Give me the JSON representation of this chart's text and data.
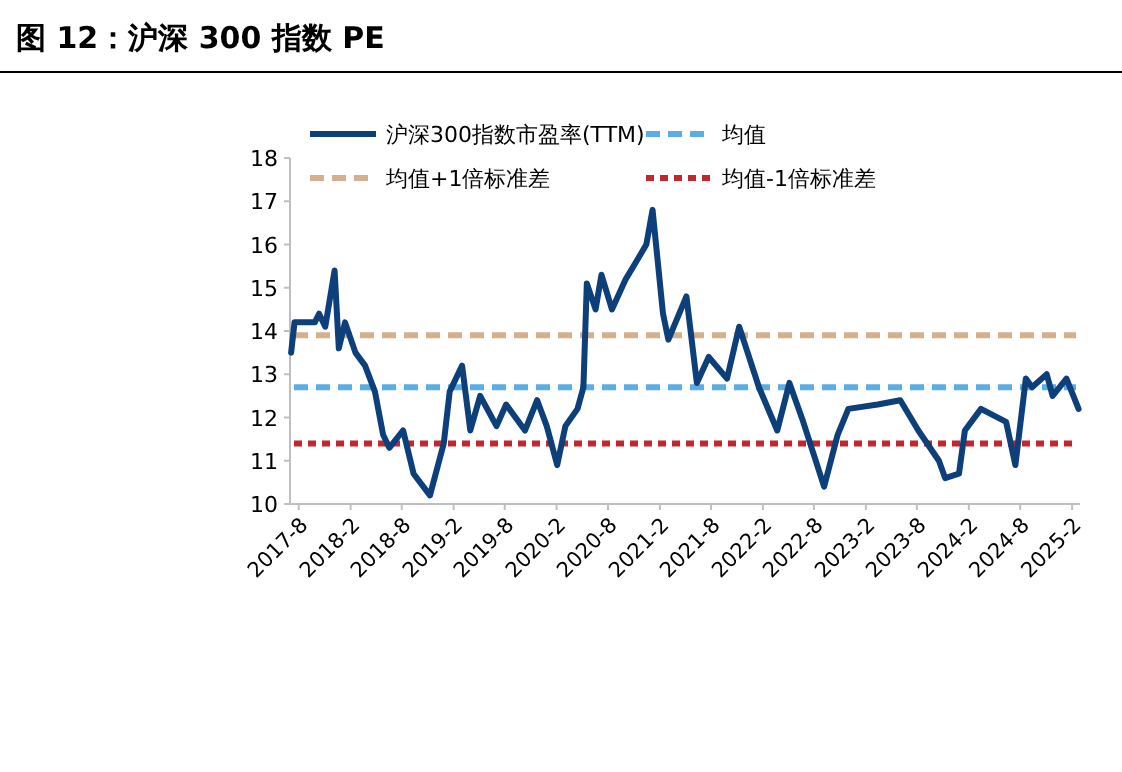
{
  "chart_data": {
    "type": "line",
    "title": "图 12：沪深 300 指数 PE",
    "xlim": [
      "2017-07",
      "2025-03"
    ],
    "ylim": [
      10,
      18
    ],
    "yticks": [
      10,
      11,
      12,
      13,
      14,
      15,
      16,
      17,
      18
    ],
    "xticks": [
      {
        "value": "2017-08",
        "label": "2017-8"
      },
      {
        "value": "2018-02",
        "label": "2018-2"
      },
      {
        "value": "2018-08",
        "label": "2018-8"
      },
      {
        "value": "2019-02",
        "label": "2019-2"
      },
      {
        "value": "2019-08",
        "label": "2019-8"
      },
      {
        "value": "2020-02",
        "label": "2020-2"
      },
      {
        "value": "2020-08",
        "label": "2020-8"
      },
      {
        "value": "2021-02",
        "label": "2021-2"
      },
      {
        "value": "2021-08",
        "label": "2021-8"
      },
      {
        "value": "2022-02",
        "label": "2022-2"
      },
      {
        "value": "2022-08",
        "label": "2022-8"
      },
      {
        "value": "2023-02",
        "label": "2023-2"
      },
      {
        "value": "2023-08",
        "label": "2023-8"
      },
      {
        "value": "2024-02",
        "label": "2024-2"
      },
      {
        "value": "2024-08",
        "label": "2024-8"
      },
      {
        "value": "2025-02",
        "label": "2025-2"
      }
    ],
    "legend": "top",
    "series": [
      {
        "name": "沪深300指数市盈率(TTM)",
        "color": "#0d3f7a",
        "line_style": "solid",
        "x": [
          "2017-07-05",
          "2017-07-17",
          "2017-09-27",
          "2017-10-12",
          "2017-11-03",
          "2017-12-06",
          "2017-12-21",
          "2018-01-12",
          "2018-02-18",
          "2018-03-24",
          "2018-04-28",
          "2018-05-27",
          "2018-06-18",
          "2018-08-06",
          "2018-09-12",
          "2018-11-09",
          "2018-12-28",
          "2019-01-18",
          "2019-03-03",
          "2019-04-01",
          "2019-05-06",
          "2019-07-03",
          "2019-08-06",
          "2019-10-12",
          "2019-11-24",
          "2019-12-28",
          "2020-02-03",
          "2020-03-03",
          "2020-04-15",
          "2020-05-06",
          "2020-05-18",
          "2020-06-18",
          "2020-07-09",
          "2020-08-15",
          "2020-10-03",
          "2020-11-09",
          "2020-12-15",
          "2021-01-06",
          "2021-02-12",
          "2021-03-03",
          "2021-05-06",
          "2021-06-12",
          "2021-07-24",
          "2021-09-27",
          "2021-11-09",
          "2022-01-18",
          "2022-03-24",
          "2022-05-06",
          "2022-06-24",
          "2022-09-06",
          "2022-10-24",
          "2022-12-01",
          "2023-03-15",
          "2023-06-03",
          "2023-08-06",
          "2023-10-18",
          "2023-11-09",
          "2023-12-28",
          "2024-01-18",
          "2024-03-15",
          "2024-06-12",
          "2024-07-15",
          "2024-08-21",
          "2024-09-12",
          "2024-11-03",
          "2024-11-24",
          "2025-01-12",
          "2025-02-24"
        ],
        "values": [
          13.5,
          14.2,
          14.2,
          14.4,
          14.1,
          15.4,
          13.6,
          14.2,
          13.5,
          13.2,
          12.6,
          11.6,
          11.3,
          11.7,
          10.7,
          10.2,
          11.4,
          12.6,
          13.2,
          11.7,
          12.5,
          11.8,
          12.3,
          11.7,
          12.4,
          11.8,
          10.9,
          11.8,
          12.2,
          12.7,
          15.1,
          14.5,
          15.3,
          14.5,
          15.2,
          15.6,
          16.0,
          16.8,
          14.4,
          13.8,
          14.8,
          12.8,
          13.4,
          12.9,
          14.1,
          12.7,
          11.7,
          12.8,
          11.9,
          10.4,
          11.6,
          12.2,
          12.3,
          12.4,
          11.7,
          11.0,
          10.6,
          10.7,
          11.7,
          12.2,
          11.9,
          10.9,
          12.9,
          12.7,
          13.0,
          12.5,
          12.9,
          12.2
        ]
      }
    ],
    "ref_lines": [
      {
        "axis": "y",
        "value": 12.7,
        "label": "均值",
        "color": "#5aaee6",
        "line_style": "dashed"
      },
      {
        "axis": "y",
        "value": 13.9,
        "label": "均值+1倍标准差",
        "color": "#d4b08c",
        "line_style": "dashed"
      },
      {
        "axis": "y",
        "value": 11.4,
        "label": "均值-1倍标准差",
        "color": "#c0282d",
        "line_style": "dotted"
      }
    ]
  }
}
